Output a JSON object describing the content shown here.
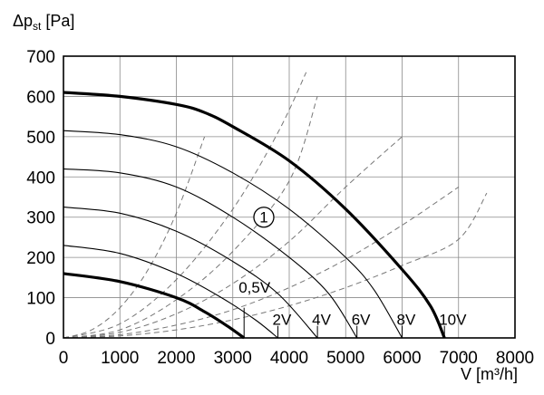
{
  "chart_data": {
    "type": "line",
    "ylabel_main": "Δp",
    "ylabel_sub": "st",
    "ylabel_unit": " [Pa]",
    "xlabel_main": "V",
    "xlabel_dot": "˙",
    "xlabel_unit": " [m³/h]",
    "xlim": [
      0,
      8000
    ],
    "ylim": [
      0,
      700
    ],
    "x_ticks": [
      0,
      1000,
      2000,
      3000,
      4000,
      5000,
      6000,
      7000,
      8000
    ],
    "y_ticks": [
      0,
      100,
      200,
      300,
      400,
      500,
      600,
      700
    ],
    "grid": true,
    "marker_label": "1",
    "marker_position": [
      3550,
      300
    ],
    "series": [
      {
        "name": "0,5V",
        "bold": true,
        "x": [
          0,
          1000,
          2000,
          2500,
          2900,
          3200
        ],
        "y": [
          160,
          140,
          100,
          65,
          30,
          0
        ]
      },
      {
        "name": "2V",
        "bold": false,
        "x": [
          0,
          1000,
          2000,
          2800,
          3400,
          3800
        ],
        "y": [
          230,
          210,
          160,
          100,
          45,
          0
        ]
      },
      {
        "name": "4V",
        "bold": false,
        "x": [
          0,
          1000,
          2000,
          3000,
          3800,
          4500
        ],
        "y": [
          325,
          310,
          265,
          190,
          110,
          0
        ]
      },
      {
        "name": "6V",
        "bold": false,
        "x": [
          0,
          1000,
          2000,
          3000,
          4000,
          4700,
          5200
        ],
        "y": [
          420,
          410,
          375,
          300,
          200,
          110,
          0
        ]
      },
      {
        "name": "8V",
        "bold": false,
        "x": [
          0,
          1000,
          2000,
          3000,
          4000,
          5000,
          5500,
          6000
        ],
        "y": [
          515,
          505,
          475,
          410,
          320,
          200,
          120,
          0
        ]
      },
      {
        "name": "10V",
        "bold": true,
        "x": [
          0,
          1000,
          2000,
          2500,
          3000,
          4000,
          5000,
          6000,
          6500,
          6750
        ],
        "y": [
          610,
          600,
          580,
          560,
          525,
          440,
          320,
          170,
          80,
          0
        ]
      }
    ],
    "system_curves": [
      {
        "x": [
          0,
          500,
          1000,
          1500,
          2000,
          2500
        ],
        "y": [
          0,
          20,
          75,
          170,
          310,
          500
        ]
      },
      {
        "x": [
          0,
          1000,
          2000,
          3000,
          3800,
          4300
        ],
        "y": [
          0,
          35,
          145,
          320,
          510,
          660
        ]
      },
      {
        "x": [
          0,
          1000,
          2000,
          3000,
          4000,
          4500
        ],
        "y": [
          0,
          20,
          95,
          215,
          390,
          600
        ]
      },
      {
        "x": [
          0,
          1000,
          2000,
          3000,
          4000,
          5000,
          6000
        ],
        "y": [
          0,
          14,
          60,
          135,
          240,
          375,
          500
        ]
      },
      {
        "x": [
          0,
          1000,
          2000,
          3000,
          4000,
          5000,
          6000,
          7000
        ],
        "y": [
          0,
          8,
          32,
          70,
          125,
          195,
          280,
          375
        ]
      },
      {
        "x": [
          0,
          1000,
          2000,
          3000,
          4000,
          5000,
          6000,
          7000,
          7500
        ],
        "y": [
          0,
          5,
          20,
          45,
          80,
          125,
          180,
          245,
          360
        ]
      }
    ]
  }
}
